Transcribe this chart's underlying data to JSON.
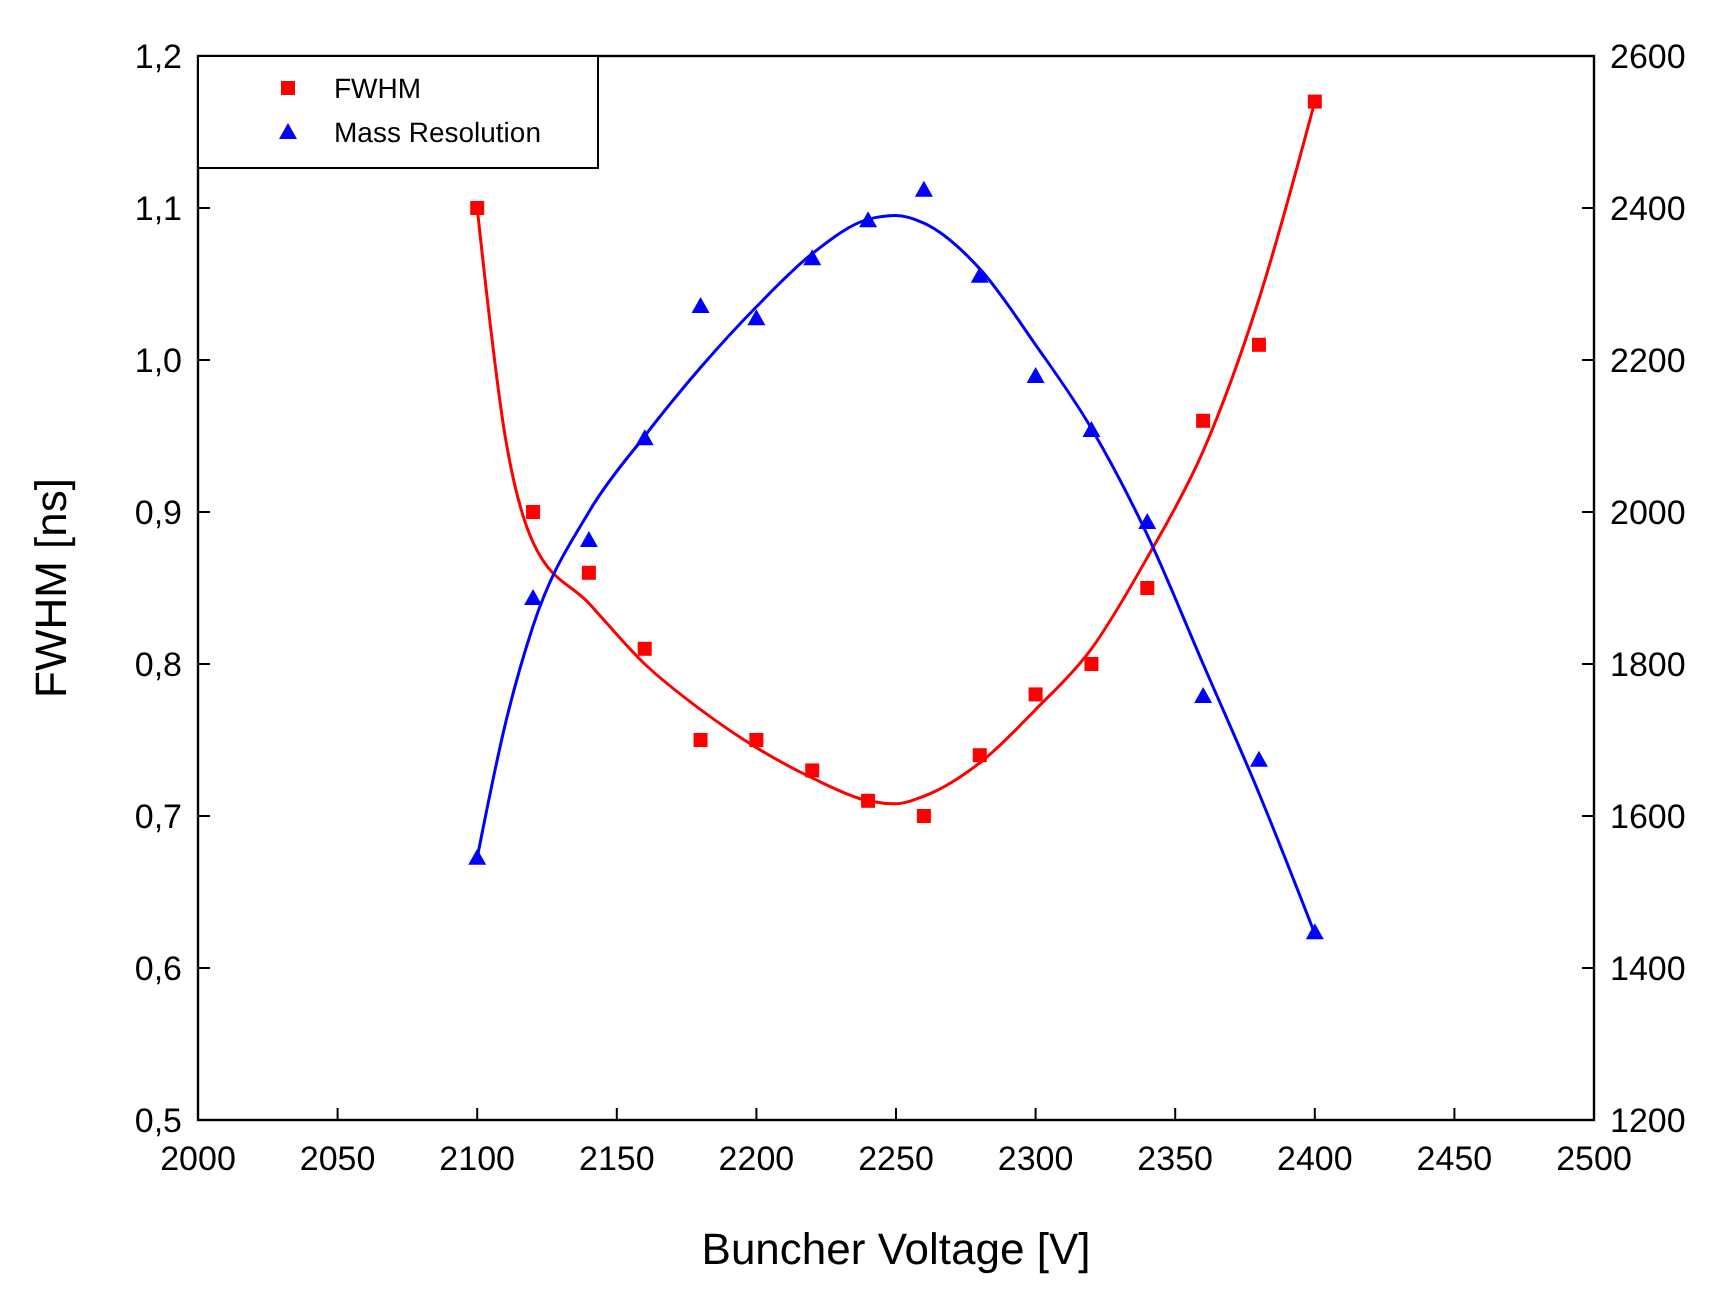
{
  "chart_data": {
    "type": "scatter",
    "xlabel": "Buncher Voltage [V]",
    "ylabel": "FWHM [ns]",
    "legend": "top left",
    "grid": false,
    "xlim": [
      2000,
      2500
    ],
    "xticks": [
      2000,
      2050,
      2100,
      2150,
      2200,
      2250,
      2300,
      2350,
      2400,
      2450,
      2500
    ],
    "ylim": [
      0.5,
      1.2
    ],
    "yticks": [
      {
        "value": 0.5,
        "label": "0,5"
      },
      {
        "value": 0.6,
        "label": "0,6"
      },
      {
        "value": 0.7,
        "label": "0,7"
      },
      {
        "value": 0.8,
        "label": "0,8"
      },
      {
        "value": 0.9,
        "label": "0,9"
      },
      {
        "value": 1.0,
        "label": "1,0"
      },
      {
        "value": 1.1,
        "label": "1,1"
      },
      {
        "value": 1.2,
        "label": "1,2"
      }
    ],
    "y2lim": [
      1200,
      2600
    ],
    "y2ticks": [
      1200,
      1400,
      1600,
      1800,
      2000,
      2200,
      2400,
      2600
    ],
    "series": [
      {
        "name": "FWHM",
        "marker": "square",
        "color": "#ff0000",
        "x": [
          2100,
          2120,
          2140,
          2160,
          2180,
          2200,
          2220,
          2240,
          2260,
          2280,
          2300,
          2320,
          2340,
          2360,
          2380,
          2400
        ],
        "values": [
          1.1,
          0.9,
          0.86,
          0.81,
          0.75,
          0.75,
          0.73,
          0.71,
          0.7,
          0.74,
          0.78,
          0.8,
          0.85,
          0.96,
          1.01,
          1.17
        ]
      },
      {
        "name": "Mass Resolution",
        "marker": "triangle",
        "axis": "y2",
        "color": "#0000ff",
        "x": [
          2100,
          2120,
          2140,
          2160,
          2180,
          2200,
          2220,
          2240,
          2260,
          2280,
          2300,
          2320,
          2340,
          2360,
          2380,
          2400
        ],
        "values": [
          1545,
          1887,
          1963,
          2097,
          2271,
          2255,
          2334,
          2384,
          2424,
          2311,
          2179,
          2108,
          1987,
          1758,
          1674,
          1447
        ]
      },
      {
        "type": "line",
        "marker": "none",
        "color": "#ff0000",
        "x": [
          2100,
          2110,
          2120,
          2140,
          2160,
          2180,
          2200,
          2220,
          2240,
          2250,
          2260,
          2280,
          2300,
          2320,
          2340,
          2360,
          2380,
          2400
        ],
        "values": [
          1.1,
          0.95,
          0.88,
          0.84,
          0.8,
          0.77,
          0.745,
          0.725,
          0.71,
          0.708,
          0.713,
          0.735,
          0.77,
          0.81,
          0.87,
          0.94,
          1.04,
          1.17
        ]
      },
      {
        "type": "line",
        "marker": "none",
        "axis": "y2",
        "color": "#0000ff",
        "x": [
          2100,
          2110,
          2120,
          2140,
          2160,
          2180,
          2200,
          2220,
          2240,
          2250,
          2260,
          2280,
          2300,
          2320,
          2340,
          2360,
          2380,
          2400
        ],
        "values": [
          1545,
          1720,
          1850,
          2000,
          2100,
          2190,
          2270,
          2340,
          2385,
          2390,
          2380,
          2320,
          2220,
          2110,
          1970,
          1800,
          1630,
          1445
        ]
      }
    ]
  }
}
